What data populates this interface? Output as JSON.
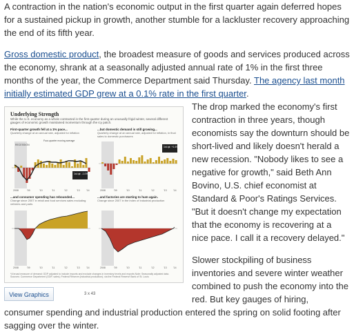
{
  "article": {
    "para1": "A contraction in the nation's economic output in the first quarter again deferred hopes for a sustained pickup in growth, another stumble for a lackluster recovery approaching the end of its fifth year.",
    "para2_link1": "Gross domestic product",
    "para2_text": ", the broadest measure of goods and services produced across the economy, shrank at a seasonally adjusted annual rate of 1% in the first three months of the year, the Commerce Department said Thursday. ",
    "para2_link2": "The agency last month initially estimated GDP grew at a 0.1% rate in the first quarter",
    "para2_end": ".",
    "para3": "The drop marked the economy's first contraction in three years, though economists say the downturn should be short-lived and likely doesn't herald a new recession. \"Nobody likes to see a negative for growth,\" said Beth Ann Bovino, U.S. chief economist at Standard & Poor's Ratings Services. \"But it doesn't change my expectation that the economy is recovering at a nice pace. I call it a recovery delayed.\"",
    "para4": "Slower stockpiling of business inventories and severe winter weather combined to push the economy into the red. But key gauges of hiring, consumer spending and industrial production entered the spring on solid footing after sagging over the winter."
  },
  "figure": {
    "title": "Underlying Strength",
    "subtitle": "While the U.S. economy as a whole contracted in the first quarter during an unusually frigid winter, several different gauges of economic growth maintained momentum through the icy patch.",
    "panels": [
      {
        "heading": "First-quarter growth fell at a 1% pace...",
        "sub": "Quarterly change at an annual rate, adjusted for inflation",
        "annotation": "Four-quarter moving average",
        "callout": "1st qtr. -1.0%"
      },
      {
        "heading": "...but domestic demand is still growing...",
        "sub": "Quarterly change at an annual rate, adjusted for inflation, in final sales to domestic purchasers",
        "callout": "1st qtr. +1.6%"
      },
      {
        "heading": "...and consumer spending has rebounded...",
        "sub": "Change since 2007 in retail and food services sales excluding vehicles and parts"
      },
      {
        "heading": "...and factories are starting to hum again.",
        "sub": "Change since 2007 in the index of industrial production"
      }
    ],
    "recession_label": "RECESSION",
    "x_ticks": [
      "2008",
      "'09",
      "'10",
      "'11",
      "'12",
      "'13",
      "'14"
    ],
    "footnote": "*A broad measure of demand; GDP adjusted to include imports and exclude changes in inventory levels and exports  Note: Seasonally adjusted data. Sources: Commerce Department (GDP, sales); Federal Reserve (industrial production); via the Federal Reserve Bank of St. Louis",
    "credit": "The Wall Street Journal",
    "button_label": "View Graphics",
    "count": "3 x 43"
  },
  "colors": {
    "link": "#1a4e8f",
    "bars_positive": "#c9a227",
    "bars_negative": "#b4362c",
    "area_positive": "#c9a227",
    "area_negative": "#b4362c"
  }
}
